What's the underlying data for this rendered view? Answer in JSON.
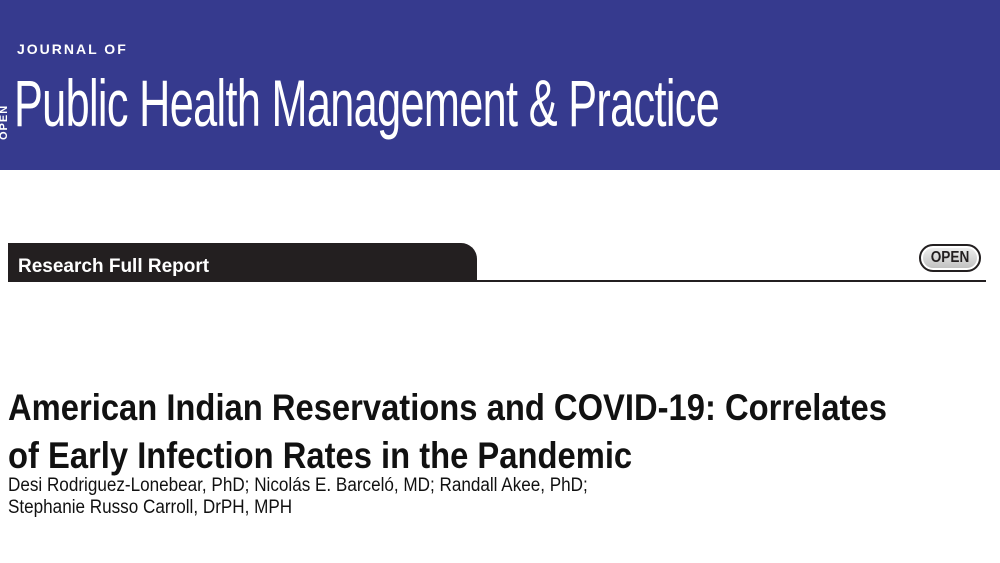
{
  "journal": {
    "edge_text": "OPEN",
    "prefix": "JOURNAL OF",
    "name": "Public Health Management & Practice"
  },
  "section": {
    "tab_label": "Research Full Report",
    "badge_label": "OPEN"
  },
  "article": {
    "title_lines": [
      "American Indian Reservations and COVID-19: Correlates",
      "of Early Infection Rates in the Pandemic"
    ],
    "author_lines": [
      "Desi Rodriguez-Lonebear, PhD; Nicolás E. Barceló, MD; Randall Akee, PhD;",
      "Stephanie Russo Carroll, DrPH, MPH"
    ]
  },
  "colors": {
    "banner": "#363a8e",
    "tab": "#231f20",
    "text": "#111111"
  }
}
